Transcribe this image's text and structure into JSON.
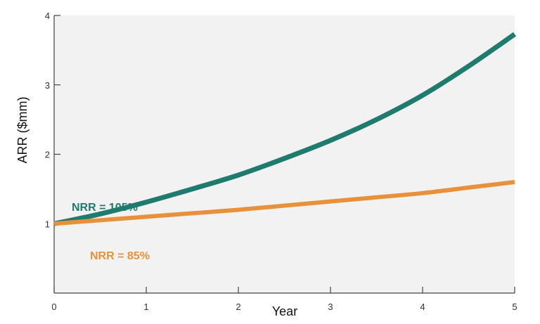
{
  "chart_data": {
    "type": "line",
    "title": "",
    "xlabel": "Year",
    "ylabel": "ARR ($mm)",
    "xlim": [
      0,
      5
    ],
    "ylim": [
      0,
      4
    ],
    "x_ticks": [
      0,
      1,
      2,
      3,
      4,
      5
    ],
    "y_ticks": [
      1,
      2,
      3,
      4
    ],
    "grid": false,
    "legend": "inline labels",
    "background_color": "#f2f2f2",
    "series": [
      {
        "name": "NRR = 105%",
        "color": "#1e7b6e",
        "x": [
          0,
          0.5,
          1,
          1.5,
          2,
          2.5,
          3,
          3.5,
          4,
          4.5,
          5
        ],
        "y": [
          1.0,
          1.14,
          1.31,
          1.5,
          1.7,
          1.94,
          2.2,
          2.5,
          2.85,
          3.27,
          3.73
        ]
      },
      {
        "name": "NRR = 85%",
        "color": "#e8913a",
        "x": [
          0,
          0.5,
          1,
          1.5,
          2,
          2.5,
          3,
          3.5,
          4,
          4.5,
          5
        ],
        "y": [
          1.0,
          1.05,
          1.1,
          1.15,
          1.2,
          1.26,
          1.32,
          1.38,
          1.44,
          1.52,
          1.6
        ]
      }
    ]
  }
}
